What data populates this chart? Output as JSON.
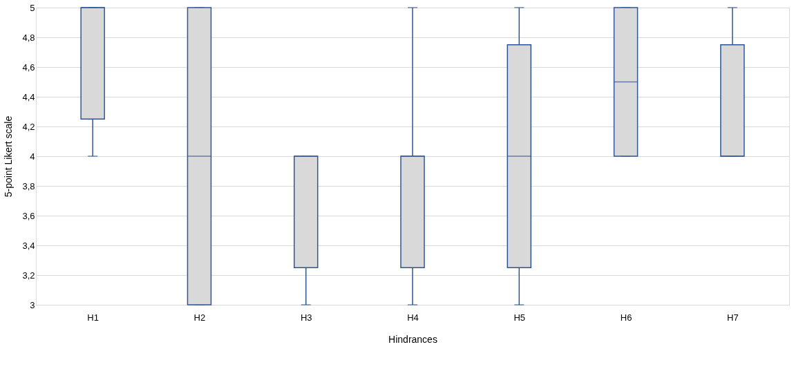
{
  "chart_data": {
    "type": "box",
    "xlabel": "Hindrances",
    "ylabel": "5-point Likert scale",
    "categories": [
      "H1",
      "H2",
      "H3",
      "H4",
      "H5",
      "H6",
      "H7"
    ],
    "series": [
      {
        "color": "#2f5597",
        "boxes": [
          {
            "low": 4,
            "q1": 4.25,
            "median": 5,
            "q3": 5,
            "high": 5
          },
          {
            "low": 3,
            "q1": 3,
            "median": 4,
            "q3": 5,
            "high": 5
          },
          {
            "low": 3,
            "q1": 3.25,
            "median": 4,
            "q3": 4,
            "high": 4
          },
          {
            "low": 3,
            "q1": 3.25,
            "median": 4,
            "q3": 4,
            "high": 5
          },
          {
            "low": 3,
            "q1": 3.25,
            "median": 4,
            "q3": 4.75,
            "high": 5
          },
          {
            "low": 4,
            "q1": 4,
            "median": 4.5,
            "q3": 5,
            "high": 5
          },
          {
            "low": 4,
            "q1": 4,
            "median": 4,
            "q3": 4.75,
            "high": 5
          }
        ]
      }
    ],
    "ylim": [
      3,
      5
    ],
    "yticks": [
      3,
      {
        "value": 3.2,
        "label": "3,2"
      },
      {
        "value": 3.4,
        "label": "3,4"
      },
      {
        "value": 3.6,
        "label": "3,6"
      },
      {
        "value": 3.8,
        "label": "3,8"
      },
      4,
      {
        "value": 4.2,
        "label": "4,2"
      },
      {
        "value": 4.4,
        "label": "4,4"
      },
      {
        "value": 4.6,
        "label": "4,6"
      },
      {
        "value": 4.8,
        "label": "4,8"
      },
      5
    ],
    "grid": "y"
  }
}
